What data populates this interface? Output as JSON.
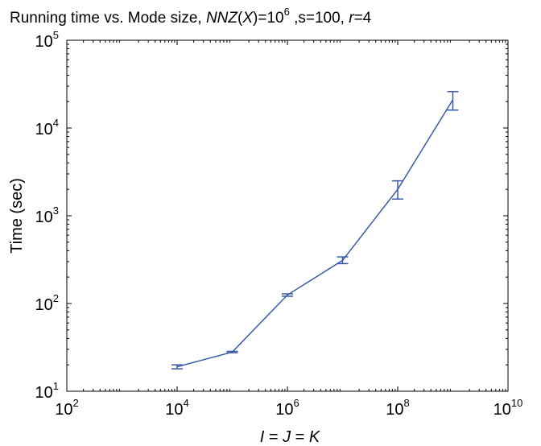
{
  "chart_data": {
    "type": "line",
    "title": {
      "prefix": "Running time vs. Mode size, ",
      "nnz_label": "NNZ",
      "nnz_var": "X",
      "nnz_eq": "=10",
      "nnz_exp": "6",
      "s_part": " ,s=100, ",
      "r_var": "r",
      "r_eq": "=4"
    },
    "xlabel": {
      "parts": [
        "I",
        " = ",
        "J",
        " = ",
        "K"
      ]
    },
    "ylabel": "Time (sec)",
    "x_scale": "log",
    "y_scale": "log",
    "xlim": [
      100,
      10000000000
    ],
    "ylim": [
      10,
      100000
    ],
    "x_ticks": [
      {
        "base": "10",
        "exp": "2",
        "value": 100
      },
      {
        "base": "10",
        "exp": "4",
        "value": 10000
      },
      {
        "base": "10",
        "exp": "6",
        "value": 1000000
      },
      {
        "base": "10",
        "exp": "8",
        "value": 100000000
      },
      {
        "base": "10",
        "exp": "10",
        "value": 10000000000
      }
    ],
    "y_ticks": [
      {
        "base": "10",
        "exp": "1",
        "value": 10
      },
      {
        "base": "10",
        "exp": "2",
        "value": 100
      },
      {
        "base": "10",
        "exp": "3",
        "value": 1000
      },
      {
        "base": "10",
        "exp": "4",
        "value": 10000
      },
      {
        "base": "10",
        "exp": "5",
        "value": 100000
      }
    ],
    "grid": false,
    "series": [
      {
        "color": "#3a5aa8",
        "points": [
          {
            "x": 10000,
            "y": 19,
            "y_low": 18,
            "y_high": 20
          },
          {
            "x": 100000,
            "y": 28,
            "y_low": 27.5,
            "y_high": 28.5
          },
          {
            "x": 1000000,
            "y": 125,
            "y_low": 121,
            "y_high": 129
          },
          {
            "x": 10000000,
            "y": 310,
            "y_low": 285,
            "y_high": 340
          },
          {
            "x": 100000000,
            "y": 2000,
            "y_low": 1550,
            "y_high": 2500
          },
          {
            "x": 1000000000,
            "y": 21000,
            "y_low": 16000,
            "y_high": 26000
          }
        ]
      }
    ]
  }
}
